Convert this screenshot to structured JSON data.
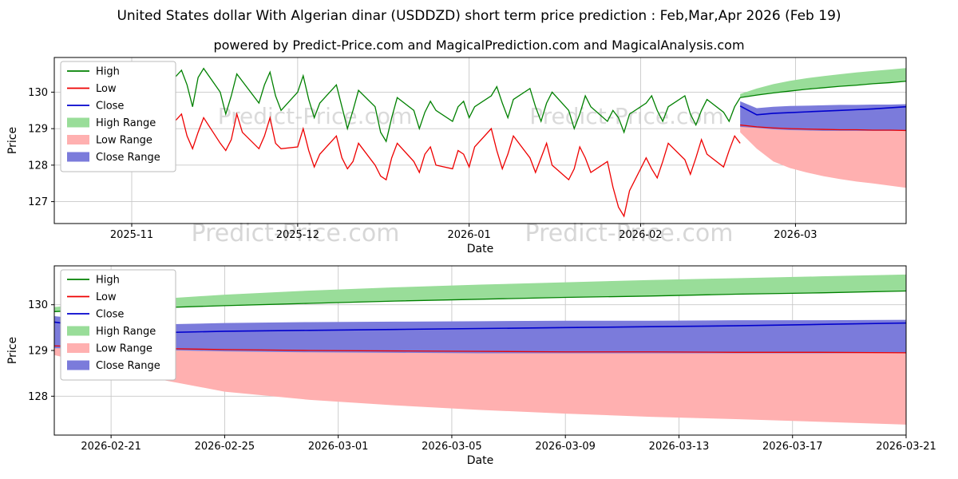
{
  "header": {
    "title": "United States dollar With Algerian dinar (USDDZD) short term price prediction : Feb,Mar,Apr 2026 (Feb 19)",
    "subtitle": "powered by Predict-Price.com and MagicalPrediction.com and MagicalAnalysis.com"
  },
  "watermark": {
    "text": "Predict-Price.com",
    "color": "#bdbdbd"
  },
  "colors": {
    "high": "#008000",
    "low": "#ee0000",
    "close": "#0000cd",
    "high_range": "#99dd99",
    "low_range": "#ffb0b0",
    "close_range": "#7b7bdb",
    "grid": "#c8c8c8",
    "axis": "#000000"
  },
  "chart_data": [
    {
      "type": "line",
      "name": "overview",
      "title": "",
      "xlabel": "Date",
      "ylabel": "Price",
      "ylim": [
        126.4,
        130.95
      ],
      "yticks": [
        127,
        128,
        129,
        130
      ],
      "xdomain": [
        "2025-10-18",
        "2026-03-21"
      ],
      "xticks": [
        {
          "date": "2025-11-01",
          "label": "2025-11"
        },
        {
          "date": "2025-12-01",
          "label": "2025-12"
        },
        {
          "date": "2026-01-01",
          "label": "2026-01"
        },
        {
          "date": "2026-02-01",
          "label": "2026-02"
        },
        {
          "date": "2026-03-01",
          "label": "2026-03"
        }
      ],
      "legend": [
        "High",
        "Low",
        "Close",
        "High Range",
        "Low Range",
        "Close Range"
      ],
      "history": {
        "dates": [
          "2025-10-20",
          "2025-10-21",
          "2025-10-22",
          "2025-10-23",
          "2025-10-24",
          "2025-10-27",
          "2025-10-28",
          "2025-10-29",
          "2025-10-30",
          "2025-10-31",
          "2025-11-03",
          "2025-11-04",
          "2025-11-05",
          "2025-11-06",
          "2025-11-07",
          "2025-11-10",
          "2025-11-11",
          "2025-11-12",
          "2025-11-13",
          "2025-11-14",
          "2025-11-17",
          "2025-11-18",
          "2025-11-19",
          "2025-11-20",
          "2025-11-21",
          "2025-11-24",
          "2025-11-25",
          "2025-11-26",
          "2025-11-27",
          "2025-11-28",
          "2025-12-01",
          "2025-12-02",
          "2025-12-03",
          "2025-12-04",
          "2025-12-05",
          "2025-12-08",
          "2025-12-09",
          "2025-12-10",
          "2025-12-11",
          "2025-12-12",
          "2025-12-15",
          "2025-12-16",
          "2025-12-17",
          "2025-12-18",
          "2025-12-19",
          "2025-12-22",
          "2025-12-23",
          "2025-12-24",
          "2025-12-25",
          "2025-12-26",
          "2025-12-29",
          "2025-12-30",
          "2025-12-31",
          "2026-01-01",
          "2026-01-02",
          "2026-01-05",
          "2026-01-06",
          "2026-01-07",
          "2026-01-08",
          "2026-01-09",
          "2026-01-12",
          "2026-01-13",
          "2026-01-14",
          "2026-01-15",
          "2026-01-16",
          "2026-01-19",
          "2026-01-20",
          "2026-01-21",
          "2026-01-22",
          "2026-01-23",
          "2026-01-26",
          "2026-01-27",
          "2026-01-28",
          "2026-01-29",
          "2026-01-30",
          "2026-02-02",
          "2026-02-03",
          "2026-02-04",
          "2026-02-05",
          "2026-02-06",
          "2026-02-09",
          "2026-02-10",
          "2026-02-11",
          "2026-02-12",
          "2026-02-13",
          "2026-02-16",
          "2026-02-17",
          "2026-02-18",
          "2026-02-19"
        ],
        "high": [
          129.55,
          130.2,
          130.65,
          130.55,
          130.7,
          130.6,
          129.7,
          128.9,
          129.6,
          130.3,
          130.65,
          130.5,
          129.8,
          129.3,
          130.1,
          130.6,
          130.2,
          129.6,
          130.4,
          130.65,
          130.0,
          129.4,
          129.9,
          130.5,
          130.3,
          129.7,
          130.2,
          130.55,
          129.9,
          129.5,
          130.0,
          130.45,
          129.8,
          129.3,
          129.7,
          130.2,
          129.6,
          129.0,
          129.5,
          130.05,
          129.6,
          128.9,
          128.65,
          129.3,
          129.85,
          129.5,
          129.0,
          129.45,
          129.75,
          129.5,
          129.2,
          129.6,
          129.75,
          129.3,
          129.6,
          129.9,
          130.15,
          129.7,
          129.3,
          129.8,
          130.1,
          129.6,
          129.2,
          129.7,
          130.0,
          129.5,
          129.0,
          129.4,
          129.9,
          129.6,
          129.2,
          129.5,
          129.3,
          128.9,
          129.4,
          129.7,
          129.9,
          129.5,
          129.2,
          129.6,
          129.9,
          129.4,
          129.1,
          129.5,
          129.8,
          129.45,
          129.2,
          129.6,
          129.85
        ],
        "low": [
          129.1,
          129.4,
          129.0,
          128.85,
          129.3,
          129.05,
          128.8,
          128.55,
          128.75,
          129.2,
          128.9,
          128.6,
          128.8,
          128.5,
          128.9,
          129.4,
          128.8,
          128.45,
          128.9,
          129.3,
          128.6,
          128.4,
          128.7,
          129.4,
          128.9,
          128.45,
          128.8,
          129.3,
          128.6,
          128.45,
          128.5,
          129.0,
          128.4,
          127.95,
          128.3,
          128.8,
          128.2,
          127.9,
          128.1,
          128.6,
          128.0,
          127.7,
          127.6,
          128.2,
          128.6,
          128.1,
          127.8,
          128.3,
          128.5,
          128.0,
          127.9,
          128.4,
          128.3,
          127.95,
          128.5,
          129.0,
          128.4,
          127.9,
          128.3,
          128.8,
          128.2,
          127.8,
          128.2,
          128.6,
          128.0,
          127.6,
          127.9,
          128.5,
          128.2,
          127.8,
          128.1,
          127.4,
          126.85,
          126.6,
          127.3,
          128.2,
          127.9,
          127.65,
          128.1,
          128.6,
          128.15,
          127.75,
          128.2,
          128.7,
          128.3,
          127.95,
          128.4,
          128.8,
          128.6
        ]
      },
      "forecast": {
        "dates": [
          "2026-02-19",
          "2026-02-22",
          "2026-02-25",
          "2026-02-28",
          "2026-03-03",
          "2026-03-06",
          "2026-03-09",
          "2026-03-12",
          "2026-03-15",
          "2026-03-18",
          "2026-03-21"
        ],
        "high_line": [
          129.85,
          129.92,
          129.98,
          130.03,
          130.08,
          130.12,
          130.16,
          130.19,
          130.23,
          130.26,
          130.3
        ],
        "high_upper": [
          129.95,
          130.1,
          130.22,
          130.31,
          130.38,
          130.44,
          130.49,
          130.54,
          130.58,
          130.62,
          130.66
        ],
        "low_line": [
          129.1,
          129.05,
          129.02,
          129.0,
          128.99,
          128.98,
          128.97,
          128.97,
          128.96,
          128.96,
          128.95
        ],
        "low_lower": [
          128.9,
          128.45,
          128.1,
          127.92,
          127.8,
          127.7,
          127.62,
          127.55,
          127.5,
          127.44,
          127.38
        ],
        "close_line": [
          129.62,
          129.38,
          129.42,
          129.44,
          129.46,
          129.48,
          129.5,
          129.52,
          129.54,
          129.57,
          129.6
        ],
        "close_upper": [
          129.75,
          129.56,
          129.6,
          129.62,
          129.63,
          129.64,
          129.65,
          129.65,
          129.66,
          129.66,
          129.67
        ],
        "close_lower": [
          129.05,
          129.02,
          128.98,
          128.96,
          128.95,
          128.94,
          128.94,
          128.94,
          128.94,
          128.94,
          128.95
        ]
      }
    },
    {
      "type": "line",
      "name": "forecast-detail",
      "title": "",
      "xlabel": "Date",
      "ylabel": "Price",
      "ylim": [
        127.15,
        130.85
      ],
      "yticks": [
        128,
        129,
        130
      ],
      "xdomain": [
        "2026-02-19",
        "2026-03-21"
      ],
      "xticks": [
        {
          "date": "2026-02-21",
          "label": "2026-02-21"
        },
        {
          "date": "2026-02-25",
          "label": "2026-02-25"
        },
        {
          "date": "2026-03-01",
          "label": "2026-03-01"
        },
        {
          "date": "2026-03-05",
          "label": "2026-03-05"
        },
        {
          "date": "2026-03-09",
          "label": "2026-03-09"
        },
        {
          "date": "2026-03-13",
          "label": "2026-03-13"
        },
        {
          "date": "2026-03-17",
          "label": "2026-03-17"
        },
        {
          "date": "2026-03-21",
          "label": "2026-03-21"
        }
      ],
      "legend": [
        "High",
        "Low",
        "Close",
        "High Range",
        "Low Range",
        "Close Range"
      ]
    }
  ]
}
